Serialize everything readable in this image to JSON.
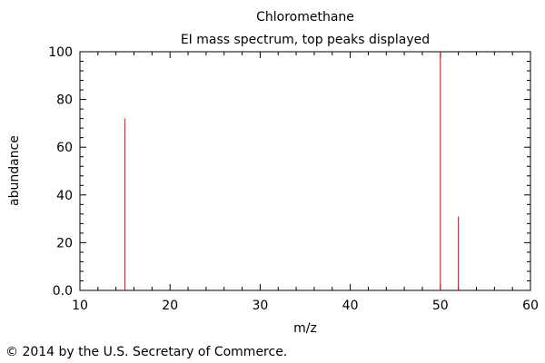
{
  "chart_data": {
    "type": "bar",
    "title": "Chloromethane",
    "subtitle": "EI mass spectrum, top peaks displayed",
    "xlabel": "m/z",
    "ylabel": "abundance",
    "xlim": [
      10,
      60
    ],
    "ylim": [
      0,
      100
    ],
    "xticks": [
      "10",
      "20",
      "30",
      "40",
      "50",
      "60"
    ],
    "yticks": [
      "0.0",
      "20",
      "40",
      "60",
      "80",
      "100"
    ],
    "peaks": [
      {
        "mz": 15,
        "abundance": 72
      },
      {
        "mz": 50,
        "abundance": 100
      },
      {
        "mz": 52,
        "abundance": 31
      }
    ],
    "peak_color": "#ff0000",
    "grid": false,
    "legend": "none"
  },
  "footer": {
    "copyright": "© 2014 by the U.S. Secretary of Commerce."
  }
}
